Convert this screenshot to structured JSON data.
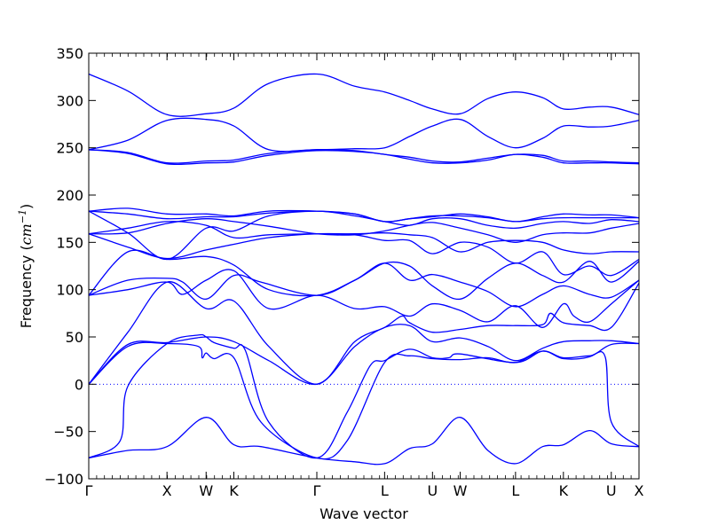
{
  "chart_data": {
    "type": "line",
    "title": "",
    "xlabel": "Wave vector",
    "ylabel": {
      "prefix": "Frequency (",
      "unit_base": "cm",
      "unit_exp": "−1",
      "suffix": ")"
    },
    "ylim": [
      -100,
      350
    ],
    "yticks": [
      -100,
      -50,
      0,
      50,
      100,
      150,
      200,
      250,
      300,
      350
    ],
    "colors": {
      "band": "#0000ff",
      "zero_line": "#0000ff",
      "axis": "#000000"
    },
    "zero_line": {
      "y": 0,
      "style": "dotted"
    },
    "x_symmetry_points": [
      {
        "label": "Γ",
        "pos": 0.0
      },
      {
        "label": "X",
        "pos": 1.0
      },
      {
        "label": "W",
        "pos": 1.5
      },
      {
        "label": "K",
        "pos": 1.854
      },
      {
        "label": "Γ",
        "pos": 2.915
      },
      {
        "label": "L",
        "pos": 3.781
      },
      {
        "label": "U",
        "pos": 4.393
      },
      {
        "label": "W",
        "pos": 4.747
      },
      {
        "label": "L",
        "pos": 5.454
      },
      {
        "label": "K",
        "pos": 6.066
      },
      {
        "label": "U",
        "pos": 6.678
      },
      {
        "label": "X",
        "pos": 7.032
      }
    ],
    "series": [
      {
        "x": [
          0,
          0.5,
          1,
          1.5,
          1.854,
          2.2,
          2.915,
          3.4,
          3.781,
          4.1,
          4.393,
          4.747,
          5.1,
          5.454,
          5.8,
          6.066,
          6.4,
          6.678,
          7.032
        ],
        "y": [
          -78,
          -70,
          -66,
          -35,
          -64,
          -66,
          -78,
          -82,
          -84,
          -68,
          -63,
          -35,
          -70,
          -84,
          -66,
          -64,
          -49,
          -63,
          -66
        ]
      },
      {
        "x": [
          0,
          0.4,
          0.5,
          1,
          1.4,
          1.5,
          1.6,
          1.854,
          2.0,
          2.3,
          2.915,
          3.3,
          3.6,
          3.781,
          4.1,
          4.393,
          4.6,
          4.747,
          5.454,
          5.8,
          6.066,
          6.4,
          6.6,
          6.678,
          7.032
        ],
        "y": [
          -78,
          -60,
          -2,
          43,
          52,
          50,
          44,
          38,
          36,
          -40,
          -78,
          -30,
          20,
          25,
          37,
          28,
          28,
          32,
          23,
          35,
          28,
          30,
          29,
          -40,
          -66
        ]
      },
      {
        "x": [
          0,
          0.5,
          1,
          1.4,
          1.45,
          1.5,
          1.6,
          1.854,
          2.2,
          2.915,
          3.3,
          3.781,
          4.1,
          4.393,
          4.747,
          5.1,
          5.454,
          5.8,
          6.066,
          6.4,
          6.678,
          7.032
        ],
        "y": [
          0,
          40,
          43,
          40,
          28,
          33,
          27,
          28,
          -40,
          -78,
          -60,
          23,
          30,
          27,
          26,
          28,
          23,
          35,
          27,
          29,
          42,
          43
        ]
      },
      {
        "x": [
          0,
          0.5,
          1,
          1.5,
          1.854,
          2.3,
          2.915,
          3.4,
          3.781,
          4.1,
          4.393,
          4.747,
          5.1,
          5.454,
          5.8,
          6.066,
          6.4,
          6.678,
          7.032
        ],
        "y": [
          0,
          42,
          44,
          50,
          45,
          25,
          0,
          40,
          60,
          62,
          45,
          49,
          40,
          25,
          38,
          45,
          46,
          46,
          43
        ]
      },
      {
        "x": [
          0,
          0.5,
          1,
          1.5,
          1.854,
          2.3,
          2.915,
          3.4,
          3.781,
          4.0,
          4.1,
          4.393,
          4.747,
          5.1,
          5.454,
          5.8,
          5.9,
          6.066,
          6.4,
          6.678,
          7.032
        ],
        "y": [
          0,
          55,
          108,
          80,
          88,
          40,
          0,
          45,
          60,
          72,
          65,
          55,
          58,
          62,
          62,
          63,
          75,
          65,
          62,
          60,
          107
        ]
      },
      {
        "x": [
          0,
          0.5,
          1,
          1.2,
          1.5,
          1.854,
          2.3,
          2.915,
          3.4,
          3.781,
          4.1,
          4.393,
          4.747,
          5.1,
          5.454,
          5.8,
          6.066,
          6.2,
          6.4,
          6.678,
          7.032
        ],
        "y": [
          94,
          100,
          108,
          95,
          110,
          120,
          80,
          94,
          80,
          82,
          72,
          85,
          78,
          66,
          83,
          60,
          85,
          72,
          66,
          85,
          110
        ]
      },
      {
        "x": [
          0,
          0.5,
          1,
          1.2,
          1.5,
          1.854,
          2.2,
          2.915,
          3.4,
          3.781,
          4.1,
          4.393,
          4.747,
          5.1,
          5.454,
          5.8,
          6.066,
          6.4,
          6.678,
          7.032
        ],
        "y": [
          94,
          110,
          112,
          108,
          90,
          115,
          108,
          94,
          110,
          128,
          110,
          116,
          108,
          98,
          82,
          95,
          104,
          95,
          92,
          110
        ]
      },
      {
        "x": [
          0,
          0.5,
          1,
          1.5,
          1.854,
          2.3,
          2.915,
          3.4,
          3.781,
          4.1,
          4.393,
          4.747,
          5.1,
          5.454,
          5.8,
          6.066,
          6.4,
          6.678,
          7.032
        ],
        "y": [
          94,
          140,
          132,
          135,
          126,
          100,
          94,
          110,
          128,
          125,
          104,
          90,
          112,
          128,
          115,
          108,
          130,
          108,
          130
        ]
      },
      {
        "x": [
          0,
          0.5,
          1,
          1.5,
          1.854,
          2.3,
          2.915,
          3.4,
          3.781,
          4.1,
          4.393,
          4.747,
          5.1,
          5.454,
          5.8,
          6.066,
          6.4,
          6.678,
          7.032
        ],
        "y": [
          159,
          145,
          133,
          142,
          148,
          155,
          159,
          158,
          152,
          152,
          138,
          150,
          145,
          128,
          140,
          116,
          125,
          115,
          132
        ]
      },
      {
        "x": [
          0,
          0.5,
          1,
          1.5,
          1.854,
          2.3,
          2.915,
          3.4,
          3.781,
          4.1,
          4.393,
          4.747,
          5.1,
          5.454,
          5.8,
          6.066,
          6.4,
          6.678,
          7.032
        ],
        "y": [
          159,
          165,
          172,
          168,
          155,
          158,
          159,
          159,
          160,
          158,
          155,
          140,
          150,
          152,
          150,
          142,
          138,
          140,
          140
        ]
      },
      {
        "x": [
          0,
          0.5,
          1,
          1.5,
          1.854,
          2.3,
          2.915,
          3.4,
          3.781,
          4.1,
          4.393,
          4.747,
          5.1,
          5.454,
          5.8,
          6.066,
          6.4,
          6.678,
          7.032
        ],
        "y": [
          159,
          160,
          170,
          175,
          172,
          167,
          159,
          158,
          162,
          168,
          171,
          165,
          158,
          150,
          158,
          160,
          160,
          165,
          170
        ]
      },
      {
        "x": [
          0,
          0.5,
          1,
          1.5,
          1.854,
          2.3,
          2.915,
          3.4,
          3.781,
          4.1,
          4.393,
          4.747,
          5.1,
          5.454,
          5.8,
          6.066,
          6.4,
          6.678,
          7.032
        ],
        "y": [
          183,
          160,
          132,
          165,
          162,
          178,
          183,
          178,
          172,
          168,
          175,
          175,
          168,
          165,
          170,
          172,
          170,
          174,
          172
        ]
      },
      {
        "x": [
          0,
          0.5,
          1,
          1.5,
          1.854,
          2.3,
          2.915,
          3.4,
          3.781,
          4.1,
          4.393,
          4.747,
          5.1,
          5.454,
          5.8,
          6.066,
          6.4,
          6.678,
          7.032
        ],
        "y": [
          183,
          180,
          175,
          177,
          177,
          181,
          183,
          180,
          172,
          175,
          178,
          178,
          176,
          172,
          175,
          176,
          176,
          176,
          176
        ]
      },
      {
        "x": [
          0,
          0.5,
          1,
          1.5,
          1.854,
          2.3,
          2.915,
          3.4,
          3.781,
          4.1,
          4.393,
          4.747,
          5.1,
          5.454,
          5.8,
          6.066,
          6.4,
          6.678,
          7.032
        ],
        "y": [
          183,
          186,
          180,
          180,
          178,
          183,
          183,
          180,
          172,
          175,
          177,
          180,
          177,
          172,
          177,
          180,
          179,
          179,
          176
        ]
      },
      {
        "x": [
          0,
          0.5,
          1,
          1.5,
          1.854,
          2.3,
          2.915,
          3.4,
          3.781,
          4.1,
          4.393,
          4.747,
          5.1,
          5.454,
          5.8,
          6.066,
          6.4,
          6.678,
          7.032
        ],
        "y": [
          248,
          244,
          233,
          234,
          235,
          242,
          247,
          246,
          243,
          238,
          234,
          234,
          237,
          243,
          240,
          234,
          234,
          234,
          233
        ]
      },
      {
        "x": [
          0,
          0.5,
          1,
          1.5,
          1.854,
          2.3,
          2.915,
          3.4,
          3.781,
          4.1,
          4.393,
          4.747,
          5.1,
          5.454,
          5.8,
          6.066,
          6.4,
          6.678,
          7.032
        ],
        "y": [
          248,
          245,
          234,
          236,
          237,
          244,
          248,
          247,
          243,
          240,
          236,
          235,
          239,
          243,
          242,
          236,
          236,
          235,
          234
        ]
      },
      {
        "x": [
          0,
          0.5,
          1,
          1.5,
          1.854,
          2.3,
          2.915,
          3.4,
          3.781,
          4.1,
          4.393,
          4.747,
          5.1,
          5.454,
          5.8,
          6.066,
          6.4,
          6.678,
          7.032
        ],
        "y": [
          248,
          258,
          279,
          280,
          273,
          248,
          248,
          249,
          250,
          262,
          273,
          280,
          262,
          250,
          260,
          273,
          272,
          273,
          279
        ]
      },
      {
        "x": [
          0,
          0.5,
          1,
          1.5,
          1.854,
          2.3,
          2.915,
          3.4,
          3.781,
          4.1,
          4.393,
          4.747,
          5.1,
          5.454,
          5.8,
          6.066,
          6.4,
          6.678,
          7.032
        ],
        "y": [
          328,
          310,
          285,
          286,
          292,
          318,
          328,
          315,
          309,
          300,
          291,
          286,
          302,
          309,
          303,
          291,
          293,
          293,
          285
        ]
      }
    ]
  }
}
